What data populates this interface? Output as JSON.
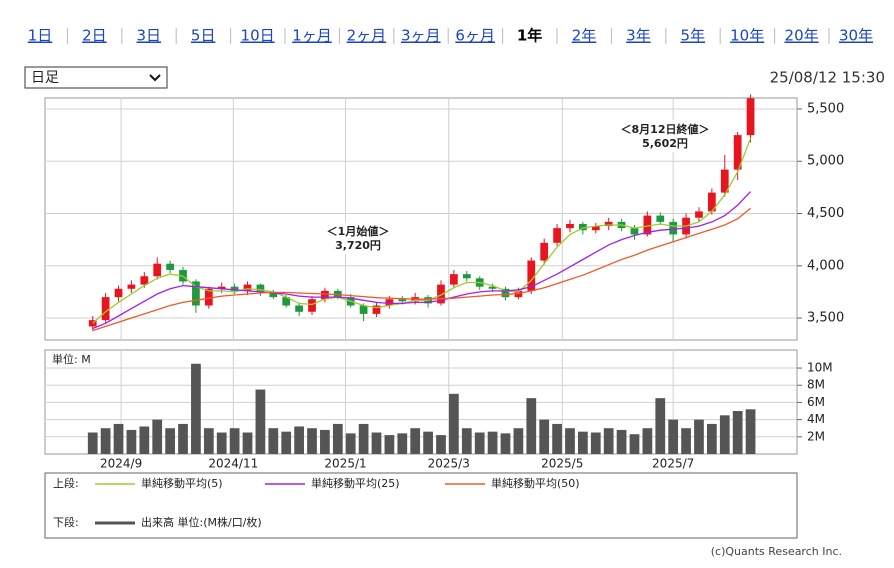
{
  "tabs": [
    "1日",
    "2日",
    "3日",
    "5日",
    "10日",
    "1ヶ月",
    "2ヶ月",
    "3ヶ月",
    "6ヶ月",
    "1年",
    "2年",
    "3年",
    "5年",
    "10年",
    "20年",
    "30年"
  ],
  "selected_tab": 9,
  "period_select": "日足",
  "timestamp": "25/08/12 15:30",
  "chart_data": [
    {
      "type": "candlestick",
      "categories": [
        null,
        null,
        null,
        null,
        null,
        null,
        null,
        null,
        null,
        null,
        null,
        null,
        null,
        null,
        null,
        null,
        null,
        null,
        null,
        null,
        null,
        null,
        null,
        null,
        null,
        null,
        null,
        null,
        null,
        null,
        null,
        null,
        null,
        null,
        null,
        null,
        null,
        null,
        null,
        null,
        null,
        null,
        null,
        null,
        null,
        null,
        null,
        null,
        null,
        null,
        null,
        null
      ],
      "open": [
        3420,
        3480,
        3700,
        3780,
        3820,
        3900,
        4020,
        3960,
        3850,
        3620,
        3780,
        3800,
        3760,
        3820,
        3750,
        3700,
        3620,
        3560,
        3680,
        3760,
        3700,
        3620,
        3540,
        3620,
        3680,
        3660,
        3700,
        3640,
        3820,
        3920,
        3880,
        3800,
        3780,
        3700,
        3760,
        4050,
        4220,
        4360,
        4400,
        4340,
        4380,
        4420,
        4360,
        4300,
        4480,
        4420,
        4300,
        4460,
        4520,
        4700,
        4920,
        5250
      ],
      "high": [
        3520,
        3740,
        3810,
        3860,
        3940,
        4080,
        4050,
        3990,
        3870,
        3800,
        3840,
        3830,
        3850,
        3830,
        3770,
        3720,
        3640,
        3710,
        3790,
        3780,
        3730,
        3640,
        3650,
        3710,
        3710,
        3740,
        3720,
        3860,
        3960,
        3950,
        3900,
        3830,
        3800,
        3790,
        4080,
        4260,
        4400,
        4440,
        4420,
        4410,
        4460,
        4450,
        4390,
        4520,
        4510,
        4450,
        4500,
        4560,
        4740,
        5060,
        5280,
        5640
      ],
      "low": [
        3380,
        3450,
        3660,
        3740,
        3790,
        3870,
        3930,
        3820,
        3550,
        3590,
        3740,
        3730,
        3720,
        3710,
        3680,
        3600,
        3520,
        3530,
        3650,
        3680,
        3600,
        3470,
        3510,
        3590,
        3630,
        3630,
        3600,
        3620,
        3790,
        3850,
        3770,
        3750,
        3670,
        3680,
        3730,
        4010,
        4190,
        4320,
        4300,
        4310,
        4340,
        4330,
        4250,
        4280,
        4390,
        4230,
        4260,
        4420,
        4490,
        4660,
        4820,
        5180
      ],
      "close": [
        3480,
        3700,
        3780,
        3820,
        3900,
        4020,
        3960,
        3850,
        3620,
        3780,
        3800,
        3760,
        3820,
        3750,
        3700,
        3620,
        3560,
        3680,
        3760,
        3700,
        3620,
        3540,
        3620,
        3680,
        3660,
        3700,
        3640,
        3820,
        3920,
        3880,
        3800,
        3780,
        3700,
        3760,
        4050,
        4220,
        4360,
        4400,
        4340,
        4380,
        4420,
        4360,
        4300,
        4480,
        4420,
        4300,
        4460,
        4520,
        4700,
        4920,
        5250,
        5602
      ],
      "up_color": "#e8141e",
      "down_color": "#1e9a3c",
      "series": [
        {
          "name": "単純移動平均(5)",
          "color": "#9acd32",
          "values": [
            3450,
            3560,
            3650,
            3730,
            3810,
            3880,
            3920,
            3900,
            3800,
            3760,
            3760,
            3750,
            3780,
            3770,
            3750,
            3700,
            3640,
            3630,
            3680,
            3700,
            3660,
            3620,
            3600,
            3620,
            3640,
            3670,
            3670,
            3720,
            3790,
            3840,
            3840,
            3810,
            3760,
            3750,
            3860,
            4020,
            4180,
            4300,
            4360,
            4380,
            4390,
            4390,
            4360,
            4380,
            4400,
            4380,
            4380,
            4420,
            4520,
            4680,
            4900,
            5220
          ]
        },
        {
          "name": "単純移動平均(25)",
          "color": "#a020f0",
          "values": [
            3400,
            3450,
            3520,
            3590,
            3660,
            3730,
            3780,
            3810,
            3800,
            3790,
            3780,
            3770,
            3760,
            3750,
            3740,
            3730,
            3710,
            3700,
            3700,
            3700,
            3690,
            3670,
            3650,
            3640,
            3640,
            3650,
            3650,
            3670,
            3700,
            3730,
            3750,
            3760,
            3760,
            3770,
            3800,
            3860,
            3920,
            3990,
            4060,
            4130,
            4200,
            4250,
            4290,
            4320,
            4340,
            4350,
            4360,
            4380,
            4420,
            4480,
            4580,
            4710
          ]
        },
        {
          "name": "単純移動平均(50)",
          "color": "#f05a28",
          "values": [
            3380,
            3420,
            3460,
            3500,
            3540,
            3580,
            3620,
            3650,
            3670,
            3690,
            3710,
            3720,
            3730,
            3740,
            3745,
            3745,
            3740,
            3735,
            3730,
            3725,
            3715,
            3705,
            3695,
            3690,
            3685,
            3680,
            3680,
            3685,
            3690,
            3700,
            3710,
            3720,
            3725,
            3735,
            3760,
            3790,
            3830,
            3870,
            3910,
            3960,
            4010,
            4060,
            4100,
            4150,
            4190,
            4230,
            4270,
            4310,
            4350,
            4390,
            4450,
            4550
          ]
        }
      ],
      "xlim": [
        -3.7,
        54.6
      ],
      "xticks": [
        {
          "value": 2.2,
          "label": "2024/9"
        },
        {
          "value": 10.9,
          "label": "2024/11"
        },
        {
          "value": 19.6,
          "label": "2025/1"
        },
        {
          "value": 27.6,
          "label": "2025/3"
        },
        {
          "value": 36.4,
          "label": "2025/5"
        },
        {
          "value": 45.0,
          "label": "2025/7"
        }
      ],
      "ylim": [
        3290,
        5605
      ],
      "yticks": [
        {
          "value": 3500,
          "label": "3,500"
        },
        {
          "value": 4000,
          "label": "4,000"
        },
        {
          "value": 4500,
          "label": "4,500"
        },
        {
          "value": 5000,
          "label": "5,000"
        },
        {
          "value": 5500,
          "label": "5,500"
        }
      ],
      "annotations": [
        {
          "title": "＜1月始値＞",
          "value": 3720,
          "value_label": "3,720円"
        },
        {
          "title": "＜8月12日終値＞",
          "value": 5602,
          "value_label": "5,602円"
        }
      ]
    },
    {
      "type": "bar",
      "unit_label": "単位: M",
      "name": "出来高 単位:(M株/口/枚)",
      "color": "#555555",
      "values": [
        2.5,
        3,
        3.5,
        2.8,
        3.2,
        4,
        3,
        3.5,
        10.5,
        3,
        2.5,
        3,
        2.5,
        7.5,
        3,
        2.6,
        3.2,
        3,
        2.8,
        3.5,
        2.4,
        3.5,
        2.5,
        2.2,
        2.4,
        3,
        2.6,
        2.2,
        7,
        3,
        2.5,
        2.6,
        2.4,
        3,
        6.5,
        4,
        3.5,
        3,
        2.6,
        2.5,
        3,
        2.8,
        2.3,
        3,
        6.5,
        4,
        3,
        4,
        3.5,
        4.5,
        5,
        5.2
      ],
      "ylim": [
        0,
        12.1
      ],
      "yticks": [
        {
          "value": 2,
          "label": "2M"
        },
        {
          "value": 4,
          "label": "4M"
        },
        {
          "value": 6,
          "label": "6M"
        },
        {
          "value": 8,
          "label": "8M"
        },
        {
          "value": 10,
          "label": "10M"
        }
      ]
    }
  ],
  "legend": {
    "upper_label": "上段:",
    "lower_label": "下段:"
  },
  "copyright": "(c)Quants Research Inc."
}
